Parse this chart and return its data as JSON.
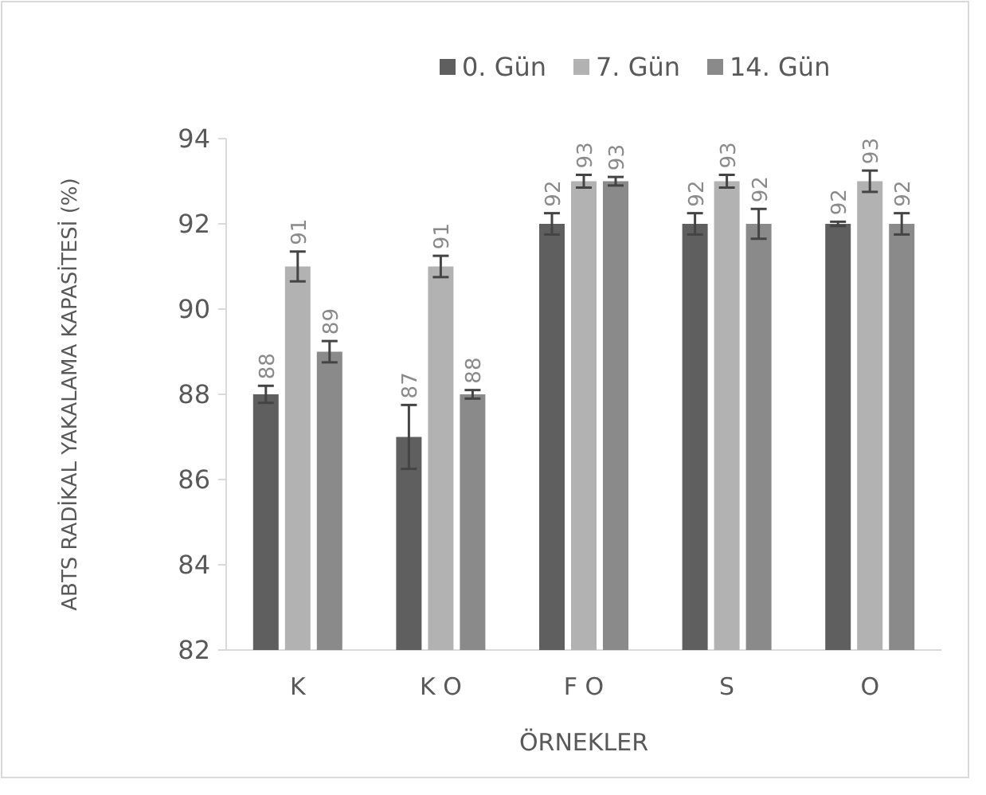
{
  "chart_data": {
    "type": "bar",
    "xlabel": "ÖRNEKLER",
    "ylabel": "ABTS RADİKAL YAKALAMA KAPASİTESİ (%)",
    "categories": [
      "K",
      "K O",
      "F O",
      "S",
      "O"
    ],
    "series": [
      {
        "name": "0. Gün",
        "color": "#5f5f5f",
        "values": [
          88,
          87,
          92,
          92,
          92
        ],
        "errors": [
          0.2,
          0.75,
          0.25,
          0.25,
          0.05
        ]
      },
      {
        "name": "7. Gün",
        "color": "#b2b2b2",
        "values": [
          91,
          91,
          93,
          93,
          93
        ],
        "errors": [
          0.35,
          0.25,
          0.15,
          0.15,
          0.25
        ]
      },
      {
        "name": "14. Gün",
        "color": "#8a8a8a",
        "values": [
          89,
          88,
          93,
          92,
          92
        ],
        "errors": [
          0.25,
          0.1,
          0.1,
          0.35,
          0.25
        ]
      }
    ],
    "ylim": [
      82,
      94
    ],
    "yticks": [
      82,
      84,
      86,
      88,
      90,
      92,
      94
    ],
    "grid": false,
    "legend": "top",
    "data_labels": true
  }
}
